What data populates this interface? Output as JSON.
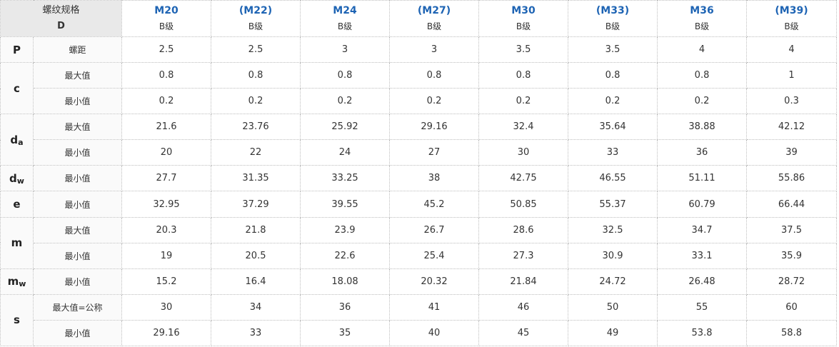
{
  "corner": {
    "line1": "螺纹规格",
    "line2": "D"
  },
  "sizes": [
    {
      "name": "M20",
      "grade": "B级"
    },
    {
      "name": "(M22)",
      "grade": "B级"
    },
    {
      "name": "M24",
      "grade": "B级"
    },
    {
      "name": "(M27)",
      "grade": "B级"
    },
    {
      "name": "M30",
      "grade": "B级"
    },
    {
      "name": "(M33)",
      "grade": "B级"
    },
    {
      "name": "M36",
      "grade": "B级"
    },
    {
      "name": "(M39)",
      "grade": "B级"
    }
  ],
  "params": {
    "P": {
      "main": "P",
      "sub": ""
    },
    "c": {
      "main": "c",
      "sub": ""
    },
    "da": {
      "main": "d",
      "sub": "a"
    },
    "dw": {
      "main": "d",
      "sub": "w"
    },
    "e": {
      "main": "e",
      "sub": ""
    },
    "m": {
      "main": "m",
      "sub": ""
    },
    "mw": {
      "main": "m",
      "sub": "w"
    },
    "s": {
      "main": "s",
      "sub": ""
    }
  },
  "rows": [
    {
      "label": "螺距",
      "values": [
        "2.5",
        "2.5",
        "3",
        "3",
        "3.5",
        "3.5",
        "4",
        "4"
      ]
    },
    {
      "label": "最大值",
      "values": [
        "0.8",
        "0.8",
        "0.8",
        "0.8",
        "0.8",
        "0.8",
        "0.8",
        "1"
      ]
    },
    {
      "label": "最小值",
      "values": [
        "0.2",
        "0.2",
        "0.2",
        "0.2",
        "0.2",
        "0.2",
        "0.2",
        "0.3"
      ]
    },
    {
      "label": "最大值",
      "values": [
        "21.6",
        "23.76",
        "25.92",
        "29.16",
        "32.4",
        "35.64",
        "38.88",
        "42.12"
      ]
    },
    {
      "label": "最小值",
      "values": [
        "20",
        "22",
        "24",
        "27",
        "30",
        "33",
        "36",
        "39"
      ]
    },
    {
      "label": "最小值",
      "values": [
        "27.7",
        "31.35",
        "33.25",
        "38",
        "42.75",
        "46.55",
        "51.11",
        "55.86"
      ]
    },
    {
      "label": "最小值",
      "values": [
        "32.95",
        "37.29",
        "39.55",
        "45.2",
        "50.85",
        "55.37",
        "60.79",
        "66.44"
      ]
    },
    {
      "label": "最大值",
      "values": [
        "20.3",
        "21.8",
        "23.9",
        "26.7",
        "28.6",
        "32.5",
        "34.7",
        "37.5"
      ]
    },
    {
      "label": "最小值",
      "values": [
        "19",
        "20.5",
        "22.6",
        "25.4",
        "27.3",
        "30.9",
        "33.1",
        "35.9"
      ]
    },
    {
      "label": "最小值",
      "values": [
        "15.2",
        "16.4",
        "18.08",
        "20.32",
        "21.84",
        "24.72",
        "26.48",
        "28.72"
      ]
    },
    {
      "label": "最大值=公称",
      "values": [
        "30",
        "34",
        "36",
        "41",
        "46",
        "50",
        "55",
        "60"
      ]
    },
    {
      "label": "最小值",
      "values": [
        "29.16",
        "33",
        "35",
        "40",
        "45",
        "49",
        "53.8",
        "58.8"
      ]
    }
  ]
}
